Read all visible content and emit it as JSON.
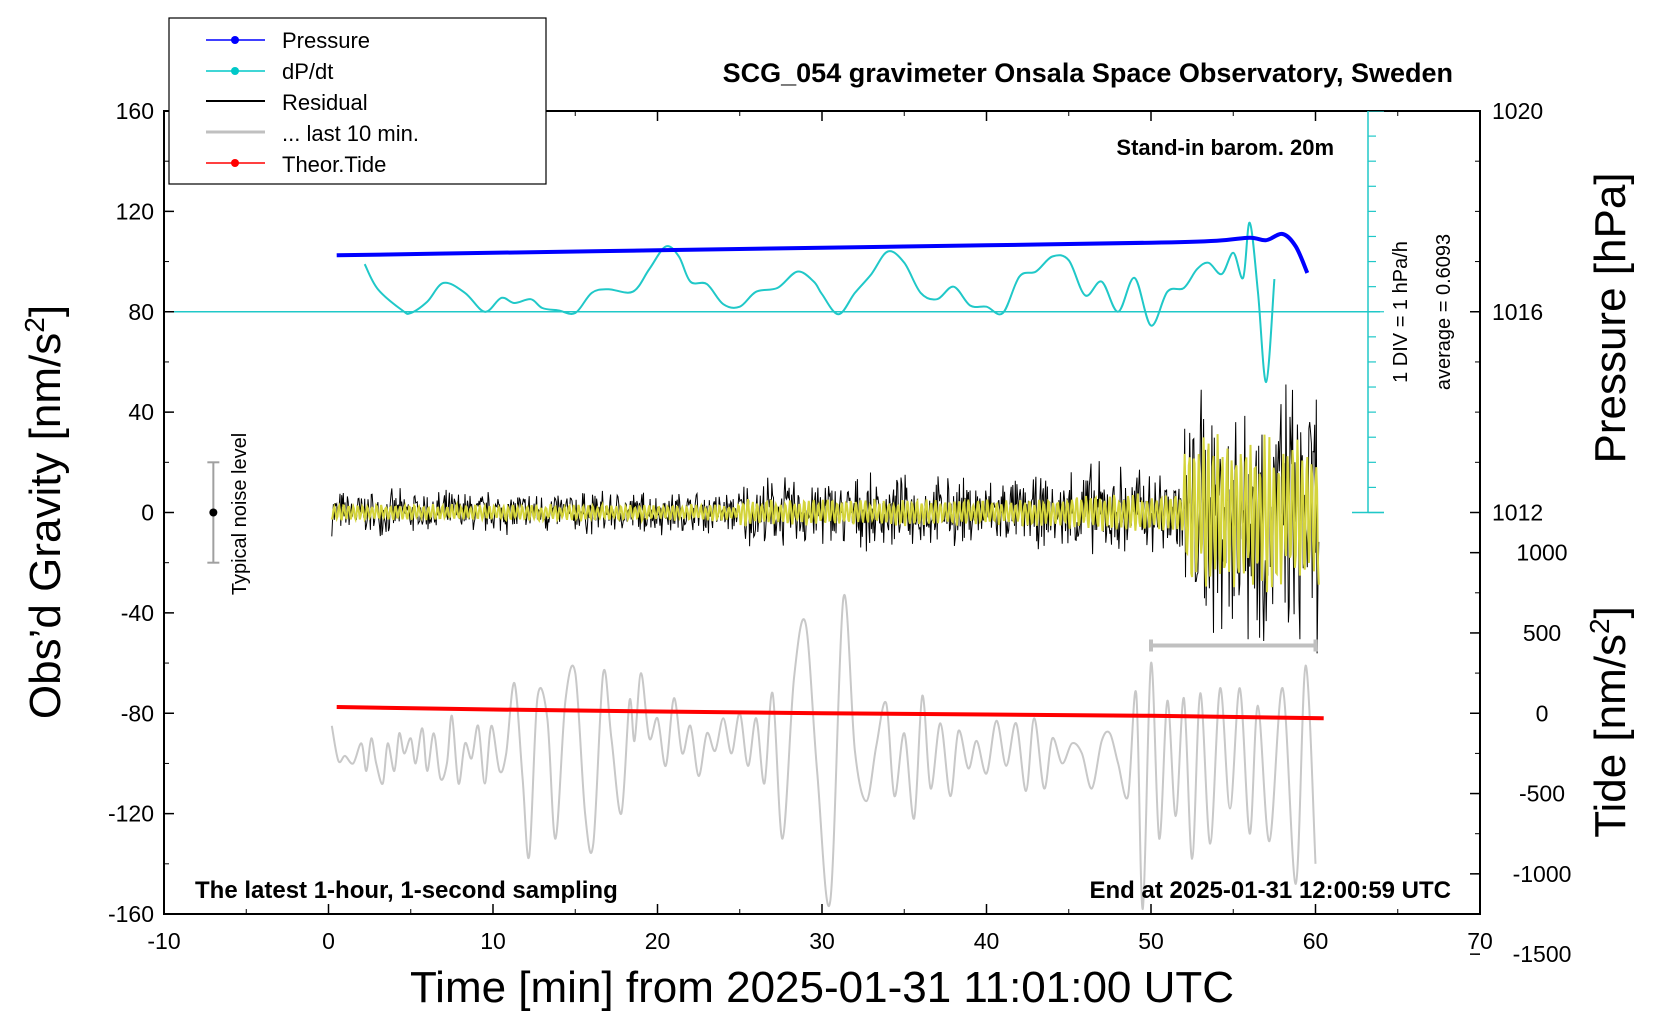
{
  "chart_data": {
    "type": "line",
    "title": "SCG_054 gravimeter Onsala Space Observatory, Sweden",
    "xlabel": "Time [min] from 2025-01-31 11:01:00 UTC",
    "ylabel": "Obs’d Gravity [nm/s",
    "ylabel_sup": "2",
    "ylabel_tail": "]",
    "y2label": "Pressure [hPa]",
    "y3label": "Tide [nm/s",
    "y3label_sup": "2",
    "y3label_tail": "]",
    "xlim": [
      -10,
      70
    ],
    "ylim": [
      -160,
      160
    ],
    "xticks": [
      -10,
      0,
      10,
      20,
      30,
      40,
      50,
      60,
      70
    ],
    "yticks": [
      -160,
      -120,
      -80,
      -40,
      0,
      40,
      80,
      120,
      160
    ],
    "pressure_ticks": [
      1012,
      1016,
      1020
    ],
    "tide_ticks": [
      -1500,
      -1000,
      -500,
      0,
      500,
      1000
    ],
    "annotations": {
      "barometer": "Stand-in barom. 20m",
      "latest": "The latest 1-hour, 1-second sampling",
      "end": "End at 2025-01-31 12:00:59 UTC",
      "noise": "Typical noise level",
      "div": "1 DIV = 1 hPa/h",
      "average": "average = 0.6093"
    },
    "legend": [
      {
        "label": "Pressure",
        "color": "#0000ff"
      },
      {
        "label": "dP/dt",
        "color": "#00c8c8"
      },
      {
        "label": "Residual",
        "color": "#000000"
      },
      {
        "label": "... last 10 min.",
        "color": "#c0c0c0"
      },
      {
        "label": "Theor.Tide",
        "color": "#ff0000"
      }
    ],
    "series": [
      {
        "name": "Pressure",
        "color": "#0000ff",
        "x": [
          0.5,
          10,
          20,
          30,
          40,
          50,
          54,
          56,
          57,
          58,
          58.8,
          59.5
        ],
        "y": [
          102.5,
          103.5,
          104.5,
          105.5,
          106.5,
          107.5,
          108.3,
          109.5,
          108.5,
          111,
          106,
          95.5
        ]
      },
      {
        "name": "dP/dt",
        "color": "#00c8c8",
        "x": [
          2.2,
          3,
          4.5,
          5,
          6,
          7,
          8.3,
          9.5,
          10.5,
          11.3,
          12.3,
          13,
          14,
          15,
          16,
          17,
          18.5,
          19.5,
          20.5,
          21.3,
          22,
          23,
          24,
          25,
          26,
          27.3,
          28.5,
          29.5,
          30,
          31,
          32,
          33,
          34,
          35,
          36,
          37,
          38,
          39,
          40,
          41,
          42,
          43,
          44,
          45,
          46,
          47,
          48,
          49,
          50,
          51,
          52,
          52.8,
          53.5,
          54.3,
          55,
          55.6,
          56,
          56.5,
          57,
          57.5
        ],
        "y": [
          99,
          89,
          80.5,
          79.5,
          84,
          91.5,
          87.5,
          80,
          85.5,
          83.5,
          85,
          81.5,
          80.5,
          79.5,
          87.5,
          89,
          88,
          97,
          106,
          102,
          92,
          91,
          83,
          82,
          88,
          89.5,
          96,
          92,
          87,
          79,
          87.5,
          95,
          104,
          99.5,
          87.5,
          85,
          90,
          82.5,
          82,
          79.5,
          94,
          96,
          102,
          100.5,
          86.5,
          92,
          80,
          93.5,
          74.5,
          88,
          89.5,
          97,
          99.5,
          95,
          103.5,
          93.5,
          115.5,
          88,
          52,
          93
        ]
      },
      {
        "name": "Theor.Tide",
        "color": "#ff0000",
        "x": [
          0.5,
          10,
          20,
          30,
          40,
          50,
          60.5
        ],
        "y": [
          -77.5,
          -78.5,
          -79.3,
          -80,
          -80.5,
          -81,
          -82
        ]
      },
      {
        "name": "Typical noise level",
        "color": "#a0a0a0",
        "x": [
          -7,
          -7
        ],
        "y": [
          -20,
          20
        ]
      },
      {
        "name": "last 10 min. span",
        "color": "#c0c0c0",
        "x": [
          50,
          60
        ],
        "y": [
          -53,
          -53
        ]
      }
    ]
  }
}
